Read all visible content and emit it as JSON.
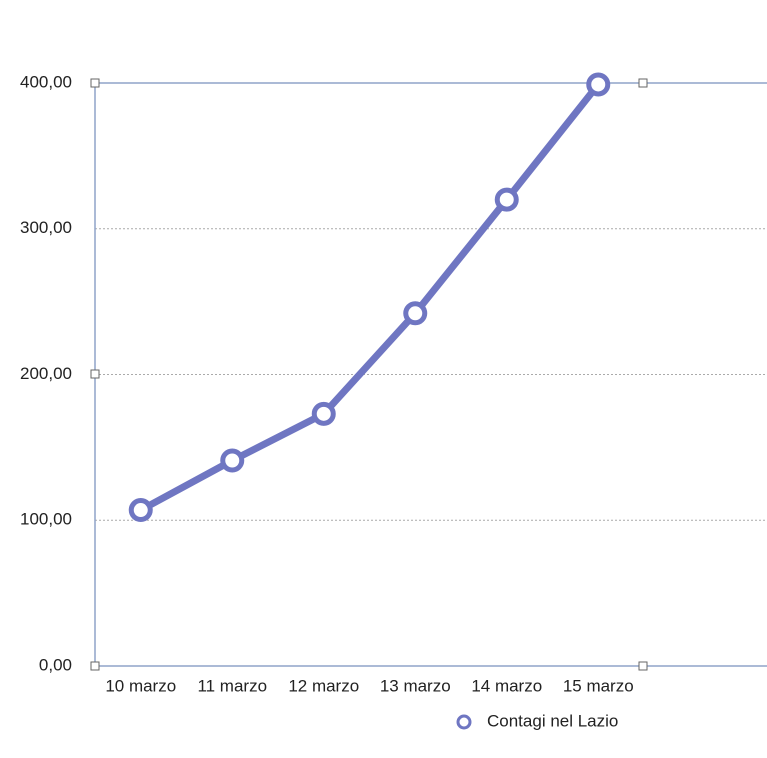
{
  "chart_data": {
    "type": "line",
    "categories": [
      "10 marzo",
      "11 marzo",
      "12 marzo",
      "13 marzo",
      "14 marzo",
      "15 marzo"
    ],
    "series": [
      {
        "name": "Contagi nel Lazio",
        "color": "#6f76c2",
        "values": [
          107,
          141,
          173,
          242,
          320,
          399
        ]
      }
    ],
    "ylim": [
      0,
      400
    ],
    "yticks": [
      {
        "value": 0,
        "label": "0,00"
      },
      {
        "value": 100,
        "label": "100,00"
      },
      {
        "value": 200,
        "label": "200,00"
      },
      {
        "value": 300,
        "label": "300,00"
      },
      {
        "value": 400,
        "label": "400,00"
      }
    ],
    "grid": true
  }
}
